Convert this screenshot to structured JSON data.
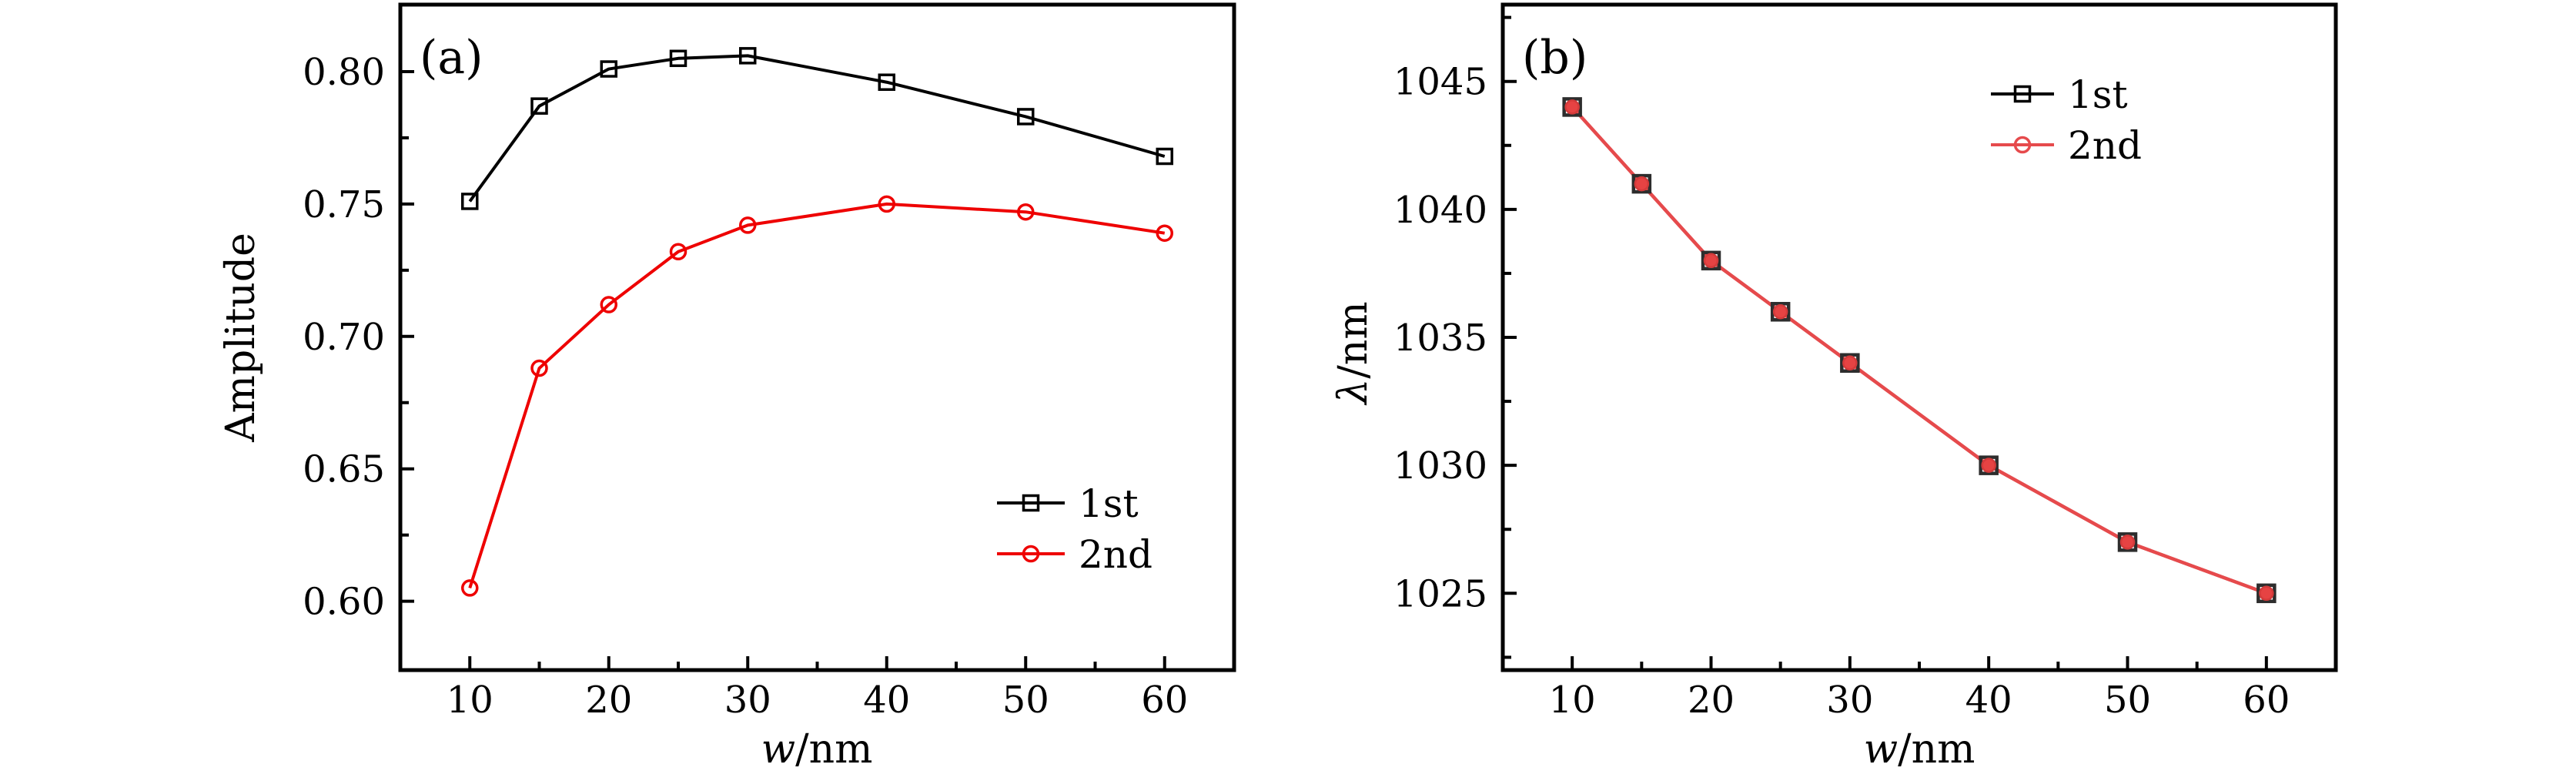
{
  "figure": {
    "background": "#ffffff",
    "description": "Two-panel line chart figure"
  },
  "chart_data": [
    {
      "id": "a",
      "type": "line",
      "panel_label": "(a)",
      "xlabel_var": "w",
      "xlabel_unit": "/nm",
      "ylabel": "Amplitude",
      "x": [
        10,
        15,
        20,
        25,
        30,
        40,
        50,
        60
      ],
      "series": [
        {
          "name": "1st",
          "color": "#000000",
          "line_width": 4,
          "marker": {
            "shape": "square",
            "size": 19,
            "stroke": "#000000",
            "stroke_width": 3.5,
            "fill": "none"
          },
          "values": [
            0.751,
            0.787,
            0.801,
            0.805,
            0.806,
            0.796,
            0.783,
            0.768
          ]
        },
        {
          "name": "2nd",
          "color": "#ee0000",
          "line_width": 4,
          "marker": {
            "shape": "circle",
            "size": 19,
            "stroke": "#ee0000",
            "stroke_width": 3.5,
            "fill": "none"
          },
          "values": [
            0.605,
            0.688,
            0.712,
            0.732,
            0.742,
            0.75,
            0.747,
            0.739
          ]
        }
      ],
      "xlim": [
        5,
        65
      ],
      "ylim": [
        0.574,
        0.8253
      ],
      "xticks": [
        10,
        20,
        30,
        40,
        50,
        60
      ],
      "xtick_labels": [
        "10",
        "20",
        "30",
        "40",
        "50",
        "60"
      ],
      "xminor": [
        15,
        25,
        35,
        45,
        55
      ],
      "yticks": [
        0.6,
        0.65,
        0.7,
        0.75,
        0.8
      ],
      "ytick_labels": [
        "0.60",
        "0.65",
        "0.70",
        "0.75",
        "0.80"
      ],
      "yminor": [
        0.625,
        0.675,
        0.725,
        0.775
      ],
      "grid": false,
      "legend_pos": "lower-right"
    },
    {
      "id": "b",
      "type": "line",
      "panel_label": "(b)",
      "xlabel_var": "w",
      "xlabel_unit": "/nm",
      "ylabel_var": "λ",
      "ylabel_unit": "/nm",
      "x": [
        10,
        15,
        20,
        25,
        30,
        40,
        50,
        60
      ],
      "series": [
        {
          "name": "1st",
          "color": "#000000",
          "line_width": 4,
          "marker": {
            "shape": "square",
            "size": 21,
            "stroke": "#2d2d2d",
            "stroke_width": 4.5,
            "fill": "none"
          },
          "values": [
            1044,
            1041,
            1038,
            1036,
            1034,
            1030,
            1027,
            1025
          ]
        },
        {
          "name": "2nd",
          "color": "#e64a4c",
          "line_width": 4.5,
          "marker": {
            "shape": "circle",
            "size": 17,
            "stroke": "#d43a3a",
            "stroke_width": 2.5,
            "fill": "#e64343"
          },
          "values": [
            1044,
            1041,
            1038,
            1036,
            1034,
            1030,
            1027,
            1025
          ]
        }
      ],
      "xlim": [
        5,
        65
      ],
      "ylim": [
        1022.0,
        1048.0
      ],
      "xticks": [
        10,
        20,
        30,
        40,
        50,
        60
      ],
      "xtick_labels": [
        "10",
        "20",
        "30",
        "40",
        "50",
        "60"
      ],
      "xminor": [
        15,
        25,
        35,
        45,
        55
      ],
      "yticks": [
        1025,
        1030,
        1035,
        1040,
        1045
      ],
      "ytick_labels": [
        "1025",
        "1030",
        "1035",
        "1040",
        "1045"
      ],
      "yminor": [
        1022.5,
        1027.5,
        1032.5,
        1037.5,
        1042.5,
        1047.5
      ],
      "grid": false,
      "legend_pos": "upper-right"
    }
  ]
}
